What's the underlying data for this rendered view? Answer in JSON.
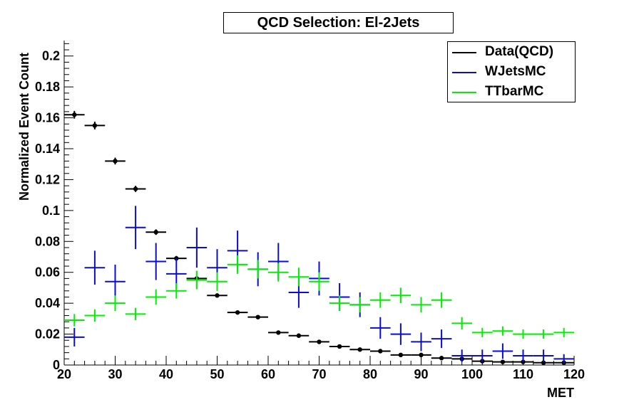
{
  "colors": {
    "data_qcd": "#000000",
    "wjets": "#0b0bd2",
    "ttbar": "#00ee00"
  },
  "chart_data": {
    "type": "scatter",
    "title": "QCD Selection: El-2Jets",
    "xlabel": "MET",
    "ylabel": "Normalized Event Count",
    "xlim": [
      20,
      120
    ],
    "ylim": [
      0,
      0.21
    ],
    "xticks": [
      "20",
      "30",
      "40",
      "50",
      "60",
      "70",
      "80",
      "90",
      "100",
      "110",
      "120"
    ],
    "yticks": [
      "0",
      "0.02",
      "0.04",
      "0.06",
      "0.08",
      "0.1",
      "0.12",
      "0.14",
      "0.16",
      "0.18",
      "0.2"
    ],
    "bin_width": 4,
    "x": [
      22,
      26,
      30,
      34,
      38,
      42,
      46,
      50,
      54,
      58,
      62,
      66,
      70,
      74,
      78,
      82,
      86,
      90,
      94,
      98,
      102,
      106,
      110,
      114,
      118
    ],
    "legend_position": "top-right",
    "grid": false,
    "series": [
      {
        "name": "Data(QCD)",
        "marker": "point",
        "values": [
          0.162,
          0.155,
          0.132,
          0.114,
          0.086,
          0.069,
          0.056,
          0.045,
          0.034,
          0.031,
          0.021,
          0.019,
          0.015,
          0.012,
          0.01,
          0.009,
          0.0065,
          0.0065,
          0.0045,
          0.004,
          0.0025,
          0.002,
          0.002,
          0.0015,
          0.0015
        ],
        "errors": [
          0.0025,
          0.0025,
          0.0022,
          0.002,
          0.0018,
          0.0016,
          0.0015,
          0.0013,
          0.0012,
          0.0011,
          0.001,
          0.0009,
          0.0008,
          0.0007,
          0.0006,
          0.0006,
          0.0005,
          0.0005,
          0.0004,
          0.0004,
          0.0003,
          0.0003,
          0.0003,
          0.0003,
          0.0003
        ]
      },
      {
        "name": "WJetsMC",
        "marker": "cross",
        "values": [
          0.018,
          0.063,
          0.054,
          0.089,
          0.067,
          0.059,
          0.076,
          0.063,
          0.074,
          0.062,
          0.067,
          0.047,
          0.056,
          0.044,
          0.039,
          0.024,
          0.02,
          0.015,
          0.017,
          0.006,
          0.006,
          0.009,
          0.006,
          0.006,
          0.004
        ],
        "errors": [
          0.006,
          0.011,
          0.011,
          0.014,
          0.012,
          0.01,
          0.013,
          0.012,
          0.013,
          0.011,
          0.012,
          0.01,
          0.011,
          0.009,
          0.008,
          0.007,
          0.007,
          0.006,
          0.006,
          0.004,
          0.004,
          0.005,
          0.004,
          0.004,
          0.003
        ]
      },
      {
        "name": "TTbarMC",
        "marker": "cross",
        "values": [
          0.029,
          0.032,
          0.04,
          0.033,
          0.044,
          0.048,
          0.055,
          0.054,
          0.065,
          0.062,
          0.06,
          0.057,
          0.054,
          0.04,
          0.039,
          0.042,
          0.045,
          0.039,
          0.042,
          0.027,
          0.021,
          0.022,
          0.02,
          0.02,
          0.021
        ],
        "errors": [
          0.004,
          0.004,
          0.005,
          0.004,
          0.005,
          0.005,
          0.006,
          0.006,
          0.006,
          0.006,
          0.006,
          0.006,
          0.006,
          0.005,
          0.005,
          0.005,
          0.005,
          0.005,
          0.005,
          0.004,
          0.003,
          0.003,
          0.003,
          0.003,
          0.003
        ]
      }
    ]
  }
}
